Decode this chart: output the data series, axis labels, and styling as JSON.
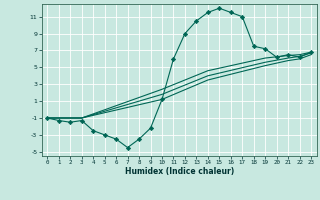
{
  "title": "",
  "xlabel": "Humidex (Indice chaleur)",
  "bg_color": "#c8e8e0",
  "grid_color": "#ffffff",
  "line_color": "#006655",
  "xlim": [
    -0.5,
    23.5
  ],
  "ylim": [
    -5.5,
    12.5
  ],
  "xticks": [
    0,
    1,
    2,
    3,
    4,
    5,
    6,
    7,
    8,
    9,
    10,
    11,
    12,
    13,
    14,
    15,
    16,
    17,
    18,
    19,
    20,
    21,
    22,
    23
  ],
  "yticks": [
    -5,
    -3,
    -1,
    1,
    3,
    5,
    7,
    9,
    11
  ],
  "series0_x": [
    0,
    1,
    2,
    3,
    4,
    5,
    6,
    7,
    8,
    9,
    10,
    11,
    12,
    13,
    14,
    15,
    16,
    17,
    18,
    19,
    20,
    21,
    22,
    23
  ],
  "series0_y": [
    -1,
    -1.3,
    -1.5,
    -1.3,
    -2.5,
    -3.0,
    -3.5,
    -4.5,
    -3.5,
    -2.2,
    1.2,
    6.0,
    9.0,
    10.5,
    11.5,
    12.0,
    11.5,
    11.0,
    7.5,
    7.2,
    6.2,
    6.5,
    6.2,
    6.8
  ],
  "series1_x": [
    0,
    1,
    2,
    3,
    10,
    14,
    19,
    21,
    22,
    23
  ],
  "series1_y": [
    -1,
    -1,
    -1,
    -1,
    1.2,
    3.5,
    5.2,
    5.8,
    6.0,
    6.5
  ],
  "series2_x": [
    0,
    1,
    2,
    3,
    10,
    14,
    19,
    21,
    22,
    23
  ],
  "series2_y": [
    -1,
    -1,
    -1,
    -1,
    1.8,
    4.0,
    5.6,
    6.1,
    6.3,
    6.7
  ],
  "series3_x": [
    0,
    1,
    2,
    3,
    10,
    14,
    19,
    21,
    22,
    23
  ],
  "series3_y": [
    -1,
    -1,
    -1,
    -1,
    2.4,
    4.6,
    6.1,
    6.4,
    6.5,
    6.8
  ]
}
